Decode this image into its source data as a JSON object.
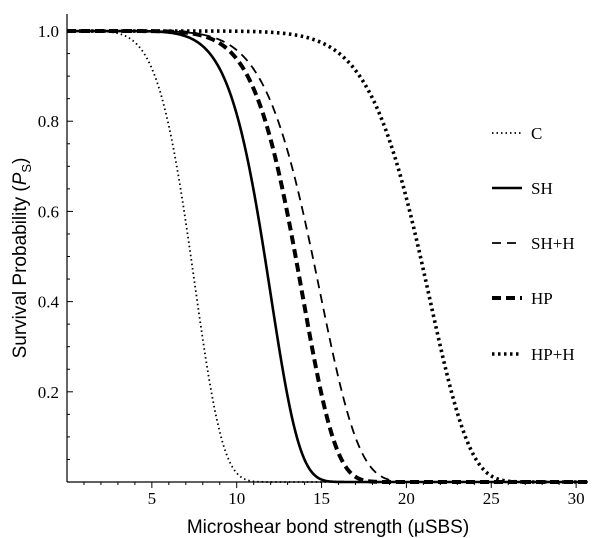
{
  "chart_data": {
    "type": "line",
    "xlabel": "Microshear bond strength (μSBS)",
    "ylabel": {
      "prefix": "Survival Probability (",
      "var": "P",
      "sub": "S",
      "suffix": ")"
    },
    "xlim": [
      0,
      30.7
    ],
    "ylim": [
      0,
      1.02
    ],
    "xticks": [
      5,
      10,
      15,
      20,
      25,
      30
    ],
    "yticks": [
      0.2,
      0.4,
      0.6,
      0.8,
      1.0
    ],
    "ytick_labels": [
      "0.2",
      "0.4",
      "0.6",
      "0.8",
      "1.0"
    ],
    "grid": false,
    "legend_position": "right",
    "series": [
      {
        "name": "C",
        "scale": 7.8,
        "shape": 5.5,
        "style": "fine-dotted"
      },
      {
        "name": "SH",
        "scale": 12.2,
        "shape": 8.0,
        "style": "solid"
      },
      {
        "name": "SH+H",
        "scale": 15.2,
        "shape": 7.5,
        "style": "dashed"
      },
      {
        "name": "HP",
        "scale": 14.1,
        "shape": 8.0,
        "style": "thick-dashed"
      },
      {
        "name": "HP+H",
        "scale": 21.6,
        "shape": 10.0,
        "style": "dotted"
      }
    ],
    "model": "Weibull survival: P = exp(-(x/scale)^shape)"
  }
}
